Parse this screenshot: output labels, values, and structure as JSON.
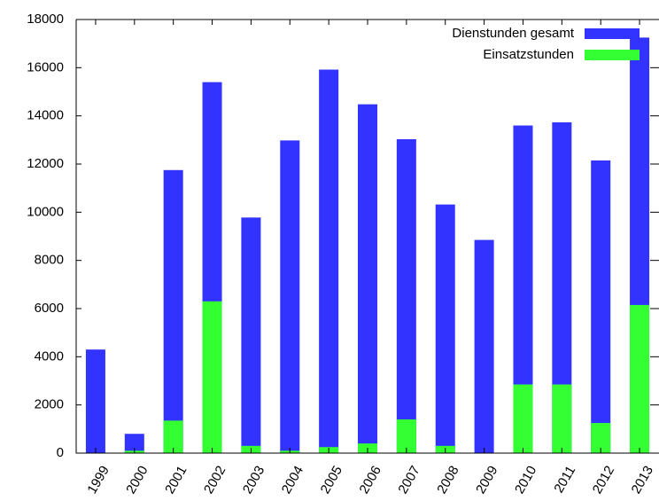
{
  "chart_data": {
    "type": "bar",
    "overlap": true,
    "categories": [
      "1999",
      "2000",
      "2001",
      "2002",
      "2003",
      "2004",
      "2005",
      "2006",
      "2007",
      "2008",
      "2009",
      "2010",
      "2011",
      "2012",
      "2013"
    ],
    "series": [
      {
        "name": "Dienstunden gesamt",
        "color": "#3333ff",
        "values": [
          4300,
          800,
          11750,
          15400,
          9780,
          12980,
          15920,
          14480,
          13030,
          10320,
          8850,
          13600,
          13730,
          12150,
          17250
        ]
      },
      {
        "name": "Einsatzstunden",
        "color": "#33ff33",
        "values": [
          0,
          100,
          1350,
          6300,
          300,
          100,
          250,
          400,
          1400,
          300,
          0,
          2850,
          2850,
          1250,
          6150
        ]
      }
    ],
    "ylim": [
      0,
      18000
    ],
    "yticks": [
      0,
      2000,
      4000,
      6000,
      8000,
      10000,
      12000,
      14000,
      16000,
      18000
    ],
    "legend": "top-right"
  }
}
